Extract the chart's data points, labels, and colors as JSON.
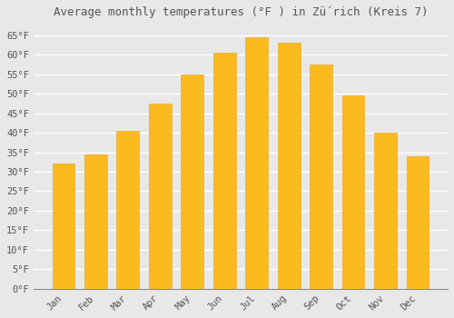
{
  "title": "Average monthly temperatures (°F ) in Zǘrich (Kreis 7)",
  "months": [
    "Jan",
    "Feb",
    "Mar",
    "Apr",
    "May",
    "Jun",
    "Jul",
    "Aug",
    "Sep",
    "Oct",
    "Nov",
    "Dec"
  ],
  "values": [
    32,
    34.5,
    40.5,
    47.5,
    55,
    60.5,
    64.5,
    63,
    57.5,
    49.5,
    40,
    34
  ],
  "bar_color_top": "#FDB930",
  "bar_color_bottom": "#F5A010",
  "bar_color": "#FBBA1E",
  "bar_edge_color": "#E8A020",
  "background_color": "#E8E8E8",
  "grid_color": "#FFFFFF",
  "text_color": "#555555",
  "ylim": [
    0,
    68
  ],
  "yticks": [
    0,
    5,
    10,
    15,
    20,
    25,
    30,
    35,
    40,
    45,
    50,
    55,
    60,
    65
  ],
  "ytick_labels": [
    "0°F",
    "5°F",
    "10°F",
    "15°F",
    "20°F",
    "25°F",
    "30°F",
    "35°F",
    "40°F",
    "45°F",
    "50°F",
    "55°F",
    "60°F",
    "65°F"
  ],
  "title_fontsize": 9,
  "tick_fontsize": 7.5,
  "figsize": [
    5.0,
    3.5
  ],
  "dpi": 100
}
